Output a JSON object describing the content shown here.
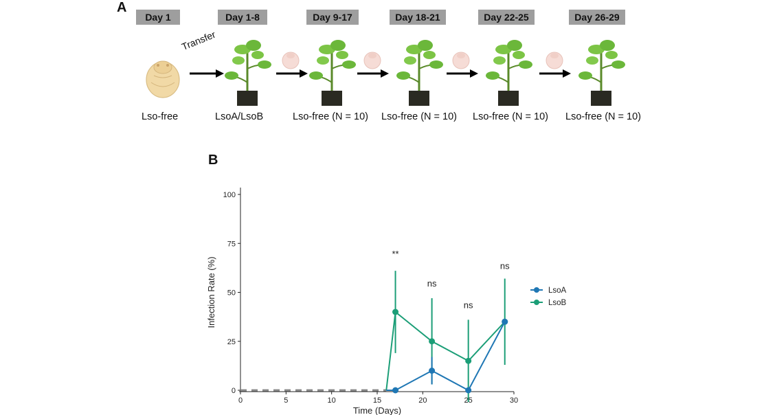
{
  "panel_a": {
    "letter": "A",
    "days": [
      "Day 1",
      "Day 1-8",
      "Day 9-17",
      "Day 18-21",
      "Day 22-25",
      "Day 26-29"
    ],
    "labels": [
      "Lso-free",
      "LsoA/LsoB",
      "Lso-free (N = 10)",
      "Lso-free (N = 10)",
      "Lso-free (N = 10)",
      "Lso-free (N = 10)"
    ],
    "transfer": "Transfer",
    "icons": [
      "psyllid-icon",
      "plant-icon",
      "arrow-icon"
    ]
  },
  "panel_b": {
    "letter": "B"
  },
  "colors": {
    "lsoA": "#1f77b4",
    "lsoB": "#1b9e77",
    "dashed": "#8a8a8a",
    "day_box": "#9e9e9e"
  },
  "chart_data": {
    "type": "line",
    "xlabel": "Time (Days)",
    "ylabel": "Infection Rate (%)",
    "xlim": [
      0,
      30
    ],
    "ylim": [
      0,
      100
    ],
    "xticks": [
      0,
      5,
      10,
      15,
      20,
      25,
      30
    ],
    "yticks": [
      0,
      25,
      50,
      75,
      100
    ],
    "baseline": {
      "x": [
        0,
        16
      ],
      "y": 0,
      "style": "dashed"
    },
    "series": [
      {
        "name": "LsoA",
        "x": [
          16,
          17,
          21,
          25,
          29
        ],
        "y": [
          0,
          0,
          10,
          0,
          35
        ],
        "error": [
          0,
          0,
          7,
          0,
          0
        ]
      },
      {
        "name": "LsoB",
        "x": [
          16,
          17,
          21,
          25,
          29
        ],
        "y": [
          0,
          40,
          25,
          15,
          35
        ],
        "error": [
          0,
          21,
          22,
          21,
          22
        ]
      }
    ],
    "annotations": [
      {
        "x": 17,
        "y": 68,
        "text": "**"
      },
      {
        "x": 21,
        "y": 53,
        "text": "ns"
      },
      {
        "x": 25,
        "y": 42,
        "text": "ns"
      },
      {
        "x": 29,
        "y": 62,
        "text": "ns"
      }
    ],
    "legend_position": "right",
    "grid": false
  }
}
